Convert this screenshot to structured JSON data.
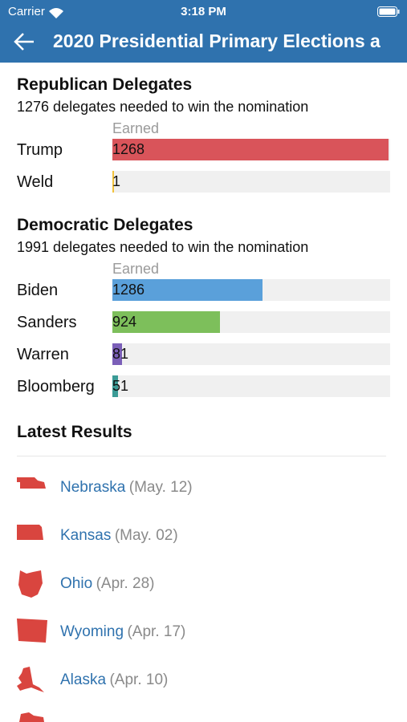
{
  "status_bar": {
    "carrier": "Carrier",
    "time": "3:18 PM"
  },
  "header": {
    "title": "2020 Presidential Primary Elections a"
  },
  "chart_data": [
    {
      "type": "bar",
      "orientation": "horizontal",
      "title": "Republican Delegates",
      "subtitle": "1276 delegates needed to win the nomination",
      "value_header": "Earned",
      "categories": [
        "Trump",
        "Weld"
      ],
      "values": [
        1268,
        1
      ],
      "colors": [
        "#d9545a",
        "#f2c23c"
      ],
      "xlim": [
        0,
        1276
      ]
    },
    {
      "type": "bar",
      "orientation": "horizontal",
      "title": "Democratic Delegates",
      "subtitle": "1991 delegates needed to win the nomination",
      "value_header": "Earned",
      "categories": [
        "Biden",
        "Sanders",
        "Warren",
        "Bloomberg"
      ],
      "values": [
        1286,
        924,
        81,
        51
      ],
      "colors": [
        "#5aa0da",
        "#7dbf5b",
        "#7b5fb8",
        "#3b9b96"
      ],
      "xlim": [
        0,
        2380
      ]
    }
  ],
  "latest_results": {
    "title": "Latest Results",
    "items": [
      {
        "state": "Nebraska",
        "date": "(May. 12)"
      },
      {
        "state": "Kansas",
        "date": "(May. 02)"
      },
      {
        "state": "Ohio",
        "date": "(Apr. 28)"
      },
      {
        "state": "Wyoming",
        "date": "(Apr. 17)"
      },
      {
        "state": "Alaska",
        "date": "(Apr. 10)"
      }
    ]
  }
}
